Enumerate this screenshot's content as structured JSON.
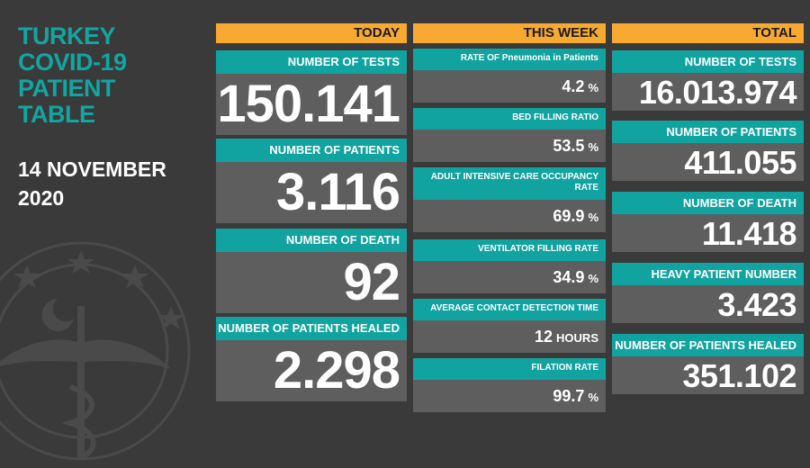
{
  "title_lines": [
    "TURKEY",
    "COVID-19",
    "PATIENT",
    "TABLE"
  ],
  "date_lines": [
    "14 NOVEMBER",
    "2020"
  ],
  "colors": {
    "teal": "#11a3a0",
    "orange": "#f7a931",
    "background": "#3a3a3a",
    "value_box": "#5e5e5e"
  },
  "emblem_icon": "ministry-of-health-emblem-icon",
  "today": {
    "header": "TODAY",
    "tests_label": "NUMBER OF TESTS",
    "tests_value": "150.141",
    "patients_label": "NUMBER OF PATIENTS",
    "patients_value": "3.116",
    "deaths_label": "NUMBER OF DEATH",
    "deaths_value": "92",
    "healed_label": "NUMBER OF PATIENTS HEALED",
    "healed_value": "2.298"
  },
  "week": {
    "header": "THIS WEEK",
    "pneumonia_label": "RATE OF Pneumonia in Patients",
    "pneumonia_value": "4.2",
    "pneumonia_unit": "%",
    "bed_label": "BED FILLING RATIO",
    "bed_value": "53.5",
    "bed_unit": "%",
    "icu_label": "ADULT INTENSIVE CARE OCCUPANCY RATE",
    "icu_value": "69.9",
    "icu_unit": "%",
    "ventilator_label": "VENTILATOR FILLING RATE",
    "ventilator_value": "34.9",
    "ventilator_unit": "%",
    "contact_label": "AVERAGE CONTACT DETECTION TIME",
    "contact_value": "12",
    "contact_unit": "HOURS",
    "filation_label": "FILATION RATE",
    "filation_value": "99.7",
    "filation_unit": "%"
  },
  "total": {
    "header": "TOTAL",
    "tests_label": "NUMBER OF TESTS",
    "tests_value": "16.013.974",
    "patients_label": "NUMBER OF PATIENTS",
    "patients_value": "411.055",
    "deaths_label": "NUMBER OF DEATH",
    "deaths_value": "11.418",
    "heavy_label": "HEAVY PATIENT NUMBER",
    "heavy_value": "3.423",
    "healed_label": "NUMBER OF PATIENTS HEALED",
    "healed_value": "351.102"
  }
}
